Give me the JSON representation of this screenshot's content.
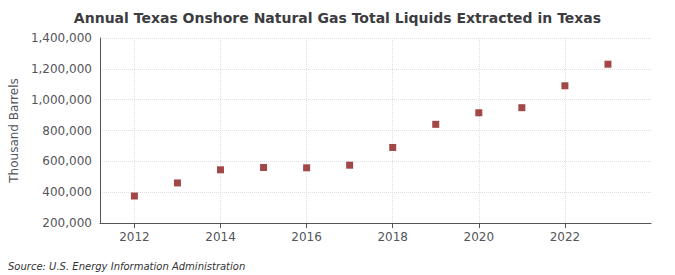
{
  "chart_data": {
    "type": "scatter",
    "title": "Annual Texas Onshore Natural Gas Total Liquids Extracted in Texas",
    "ylabel": "Thousand Barrels",
    "annotation": "Source: U.S. Energy Information Administration",
    "x": [
      2012,
      2013,
      2014,
      2015,
      2016,
      2017,
      2018,
      2019,
      2020,
      2021,
      2022,
      2023
    ],
    "values": [
      375000,
      460000,
      545000,
      560000,
      558000,
      575000,
      690000,
      840000,
      915000,
      948000,
      1090000,
      1230000
    ],
    "color": "#8b1a1a",
    "marker": "square",
    "xlim": [
      2011.2,
      2024.0
    ],
    "xticks": [
      2012,
      2014,
      2016,
      2018,
      2020,
      2022
    ],
    "ylim": [
      200000,
      1400000
    ],
    "yticks": [
      {
        "value": 200000,
        "label": "200,000"
      },
      {
        "value": 400000,
        "label": "400,000"
      },
      {
        "value": 600000,
        "label": "600,000"
      },
      {
        "value": 800000,
        "label": "800,000"
      },
      {
        "value": 1000000,
        "label": "1,000,000"
      },
      {
        "value": 1200000,
        "label": "1,200,000"
      },
      {
        "value": 1400000,
        "label": "1,400,000"
      }
    ],
    "grid": true
  }
}
